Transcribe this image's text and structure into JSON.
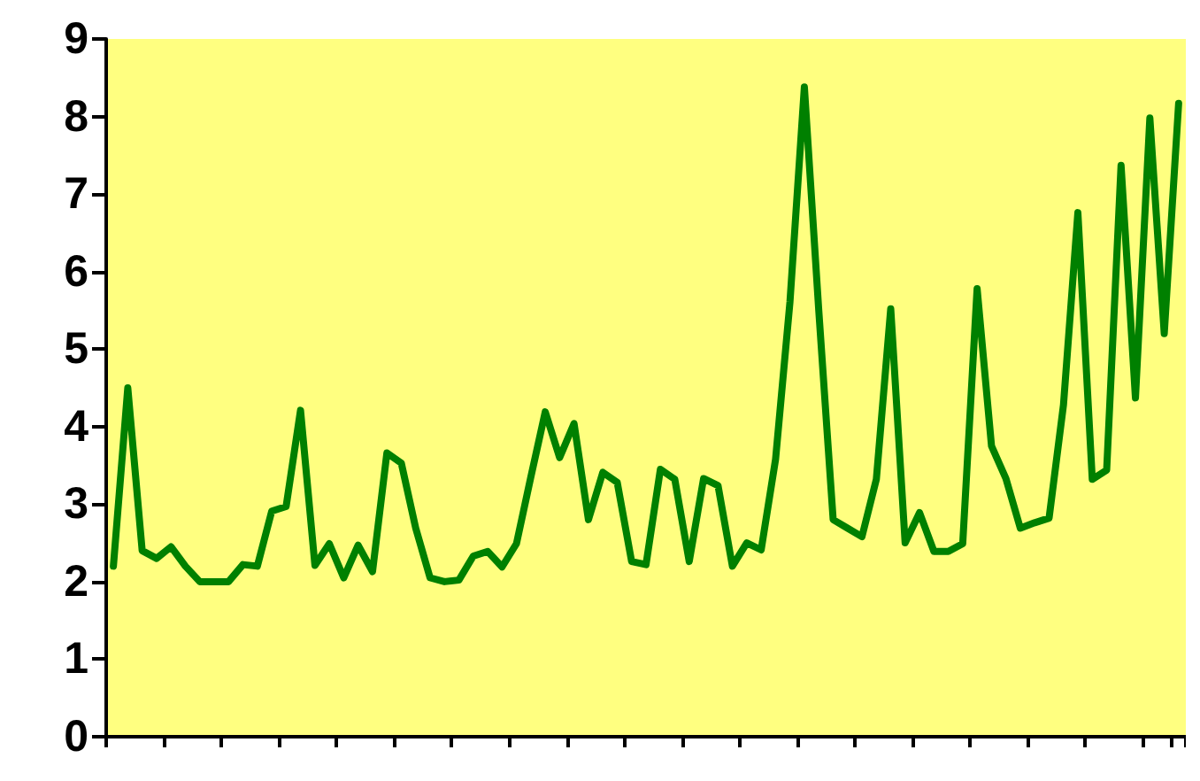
{
  "chart_data": {
    "type": "line",
    "categories": [
      null,
      null,
      null,
      null,
      null,
      null,
      null,
      null,
      null,
      null,
      null,
      null,
      null,
      null,
      null,
      null,
      null,
      null,
      null,
      null,
      null,
      null,
      null,
      null,
      null,
      null,
      null,
      null,
      null,
      null,
      null,
      null,
      null,
      null,
      null,
      null,
      null,
      null,
      null,
      null,
      null,
      null,
      null,
      null,
      null,
      null,
      null,
      null,
      null,
      null,
      null,
      null,
      null,
      null,
      null,
      null,
      null,
      null,
      null,
      null,
      null,
      null,
      null,
      null,
      null,
      null,
      null,
      null,
      null,
      null,
      null,
      null,
      null,
      null,
      null
    ],
    "series": [
      {
        "color": "#008000",
        "values": [
          2.2,
          4.5,
          2.4,
          2.3,
          2.45,
          2.2,
          2.0,
          2.0,
          2.0,
          2.22,
          2.2,
          2.91,
          2.97,
          4.21,
          2.21,
          2.49,
          2.05,
          2.47,
          2.13,
          3.66,
          3.53,
          2.69,
          2.05,
          2.0,
          2.02,
          2.33,
          2.39,
          2.19,
          2.49,
          3.35,
          4.19,
          3.6,
          4.04,
          2.8,
          3.41,
          3.28,
          2.26,
          2.22,
          3.45,
          3.32,
          2.26,
          3.33,
          3.24,
          2.2,
          2.5,
          2.41,
          3.58,
          5.61,
          8.38,
          5.5,
          2.8,
          2.69,
          2.58,
          3.32,
          5.52,
          2.5,
          2.89,
          2.39,
          2.39,
          2.49,
          5.78,
          3.75,
          3.33,
          2.69,
          2.76,
          2.82,
          4.28,
          6.76,
          3.32,
          3.44,
          7.37,
          4.37,
          7.98,
          5.2,
          8.17
        ]
      }
    ],
    "ylim": [
      0,
      9
    ],
    "yticks": [
      0,
      1,
      2,
      3,
      4,
      5,
      6,
      7,
      8,
      9
    ],
    "grid": false,
    "tick_labels": "y",
    "line_style": "solid"
  }
}
